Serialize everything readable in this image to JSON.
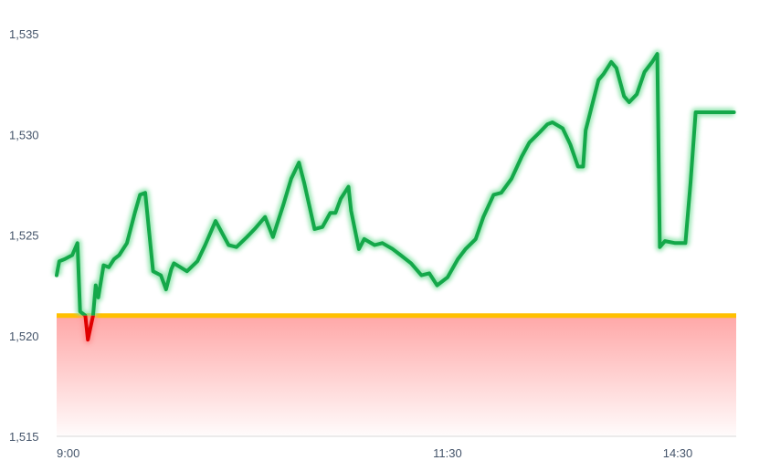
{
  "chart_data": {
    "type": "line",
    "title": "",
    "xlabel": "",
    "ylabel": "",
    "ylim": [
      1515,
      1535
    ],
    "y_ticks": [
      "1,515",
      "1,520",
      "1,525",
      "1,530",
      "1,535"
    ],
    "y_tick_values": [
      1515,
      1520,
      1525,
      1530,
      1535
    ],
    "x_ticks": [
      "9:00",
      "11:30",
      "14:30"
    ],
    "grid": false,
    "baseline": 1521.0,
    "colors": {
      "up": "#14a84a",
      "down": "#e00000",
      "baseline": "#ffc000",
      "fill": "#ff8a8a"
    },
    "points": [
      [
        "9:00",
        1523.0
      ],
      [
        "9:01",
        1523.7
      ],
      [
        "9:03",
        1523.8
      ],
      [
        "9:06",
        1524.0
      ],
      [
        "9:08",
        1524.6
      ],
      [
        "9:09",
        1521.2
      ],
      [
        "9:11",
        1521.0
      ],
      [
        "9:12",
        1519.8
      ],
      [
        "9:14",
        1521.0
      ],
      [
        "9:15",
        1522.5
      ],
      [
        "9:16",
        1521.9
      ],
      [
        "9:18",
        1523.5
      ],
      [
        "9:20",
        1523.4
      ],
      [
        "9:22",
        1523.8
      ],
      [
        "9:24",
        1524.0
      ],
      [
        "9:27",
        1524.6
      ],
      [
        "9:30",
        1526.1
      ],
      [
        "9:32",
        1527.0
      ],
      [
        "9:34",
        1527.1
      ],
      [
        "9:37",
        1523.2
      ],
      [
        "9:40",
        1523.0
      ],
      [
        "9:42",
        1522.3
      ],
      [
        "9:44",
        1523.3
      ],
      [
        "9:45",
        1523.6
      ],
      [
        "9:50",
        1523.2
      ],
      [
        "9:54",
        1523.7
      ],
      [
        "9:57",
        1524.5
      ],
      [
        "10:01",
        1525.7
      ],
      [
        "10:06",
        1524.5
      ],
      [
        "10:09",
        1524.4
      ],
      [
        "10:13",
        1524.9
      ],
      [
        "10:16",
        1525.3
      ],
      [
        "10:20",
        1525.9
      ],
      [
        "10:23",
        1524.9
      ],
      [
        "10:27",
        1526.5
      ],
      [
        "10:30",
        1527.8
      ],
      [
        "10:33",
        1528.6
      ],
      [
        "10:35",
        1527.6
      ],
      [
        "10:39",
        1525.3
      ],
      [
        "10:42",
        1525.4
      ],
      [
        "10:45",
        1526.1
      ],
      [
        "10:47",
        1526.1
      ],
      [
        "10:49",
        1526.8
      ],
      [
        "10:52",
        1527.4
      ],
      [
        "10:53",
        1526.2
      ],
      [
        "10:56",
        1524.3
      ],
      [
        "10:58",
        1524.8
      ],
      [
        "11:02",
        1524.5
      ],
      [
        "11:05",
        1524.6
      ],
      [
        "11:09",
        1524.3
      ],
      [
        "11:12",
        1524.0
      ],
      [
        "11:16",
        1523.6
      ],
      [
        "11:20",
        1523.0
      ],
      [
        "11:23",
        1523.1
      ],
      [
        "11:26",
        1522.5
      ],
      [
        "11:30",
        1522.9
      ],
      [
        "13:04",
        1523.8
      ],
      [
        "13:07",
        1524.3
      ],
      [
        "13:11",
        1524.8
      ],
      [
        "13:14",
        1525.9
      ],
      [
        "13:18",
        1527.0
      ],
      [
        "13:21",
        1527.1
      ],
      [
        "13:25",
        1527.8
      ],
      [
        "13:29",
        1528.9
      ],
      [
        "13:32",
        1529.6
      ],
      [
        "13:36",
        1530.1
      ],
      [
        "13:39",
        1530.5
      ],
      [
        "13:41",
        1530.6
      ],
      [
        "13:45",
        1530.3
      ],
      [
        "13:48",
        1529.5
      ],
      [
        "13:51",
        1528.4
      ],
      [
        "13:53",
        1528.4
      ],
      [
        "13:54",
        1530.2
      ],
      [
        "13:56",
        1531.2
      ],
      [
        "13:59",
        1532.7
      ],
      [
        "14:01",
        1533.0
      ],
      [
        "14:04",
        1533.6
      ],
      [
        "14:06",
        1533.3
      ],
      [
        "14:09",
        1531.9
      ],
      [
        "14:11",
        1531.6
      ],
      [
        "14:14",
        1532.0
      ],
      [
        "14:17",
        1533.1
      ],
      [
        "14:20",
        1533.6
      ],
      [
        "14:22",
        1534.0
      ],
      [
        "14:23",
        1524.4
      ],
      [
        "14:25",
        1524.7
      ],
      [
        "14:29",
        1524.6
      ],
      [
        "14:33",
        1524.6
      ],
      [
        "14:35",
        1527.6
      ],
      [
        "14:37",
        1531.1
      ],
      [
        "14:52",
        1531.1
      ]
    ]
  }
}
